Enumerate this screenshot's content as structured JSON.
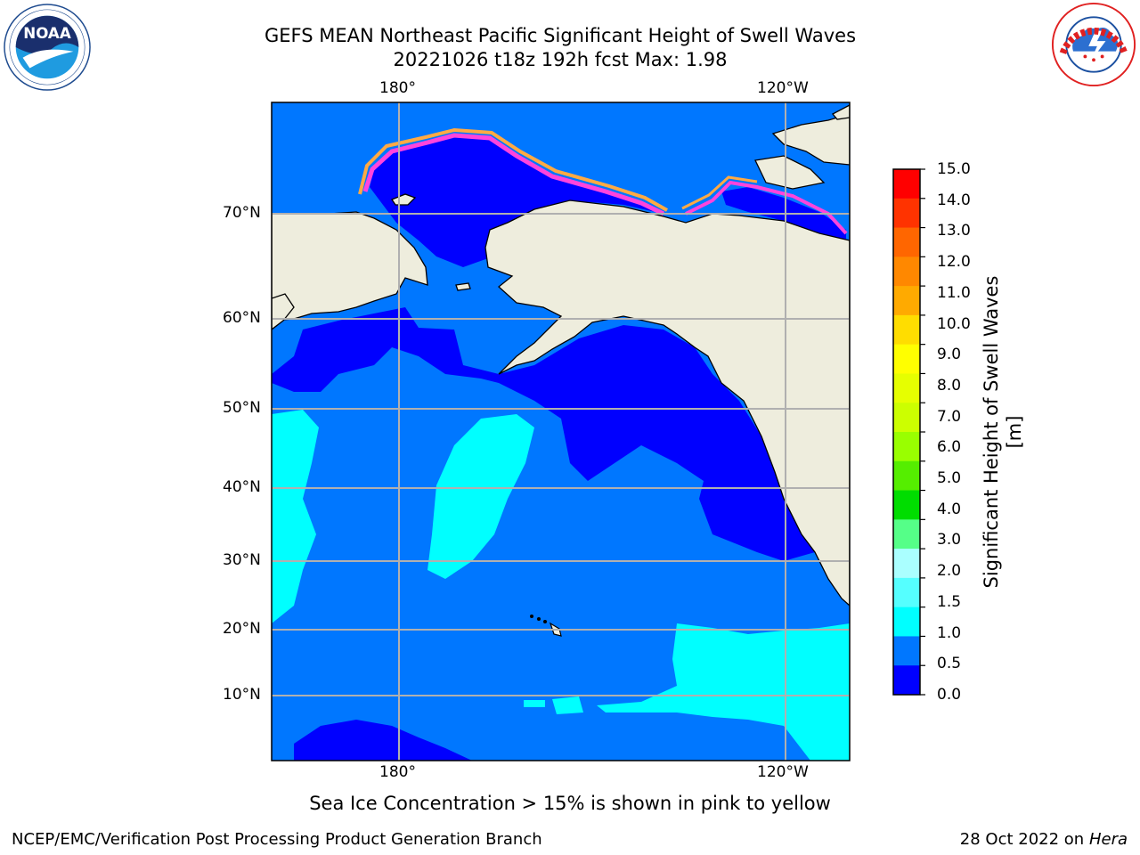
{
  "header": {
    "title_line1": "GEFS MEAN Northeast Pacific Significant Height of Swell Waves",
    "title_line2": "20221026 t18z 192h fcst   Max: 1.98"
  },
  "logos": {
    "left": "NOAA",
    "left_ring": "NATIONAL OCEANIC AND ATMOSPHERIC ADMINISTRATION · U.S. DEPARTMENT OF COMMERCE",
    "right_ring": "NATIONAL WEATHER SERVICE"
  },
  "map": {
    "lon_labels_top": [
      "180°",
      "120°W"
    ],
    "lon_labels_bottom": [
      "180°",
      "120°W"
    ],
    "lat_labels": [
      "70°N",
      "60°N",
      "50°N",
      "40°N",
      "30°N",
      "20°N",
      "10°N"
    ],
    "colors": {
      "land": "#eeeddd",
      "sea_low": "#0000ff",
      "sea_mid": "#0077ff",
      "sea_high": "#00ffff",
      "ice_pink": "#ff44dd",
      "ice_orange": "#ffaa44",
      "grid": "#b0b0b0"
    }
  },
  "colorbar": {
    "label": "Significant Height of Swell Waves [m]",
    "ticks": [
      "15.0",
      "14.0",
      "13.0",
      "12.0",
      "11.0",
      "10.0",
      "9.0",
      "8.0",
      "7.0",
      "6.0",
      "5.0",
      "4.0",
      "3.0",
      "2.0",
      "1.5",
      "1.0",
      "0.5",
      "0.0"
    ],
    "colors": [
      "#ff0000",
      "#ff3300",
      "#ff6600",
      "#ff8800",
      "#ffaa00",
      "#ffdd00",
      "#ffff00",
      "#e6ff00",
      "#ccff00",
      "#99ff00",
      "#55ee00",
      "#00dd00",
      "#55ff88",
      "#aaffff",
      "#55ffff",
      "#00ffff",
      "#0077ff",
      "#0000ff"
    ]
  },
  "footer": {
    "caption": "Sea Ice Concentration > 15% is shown in pink to yellow",
    "left": "NCEP/EMC/Verification Post Processing Product Generation Branch",
    "right_date": "28 Oct 2022 on ",
    "right_host": "Hera"
  }
}
